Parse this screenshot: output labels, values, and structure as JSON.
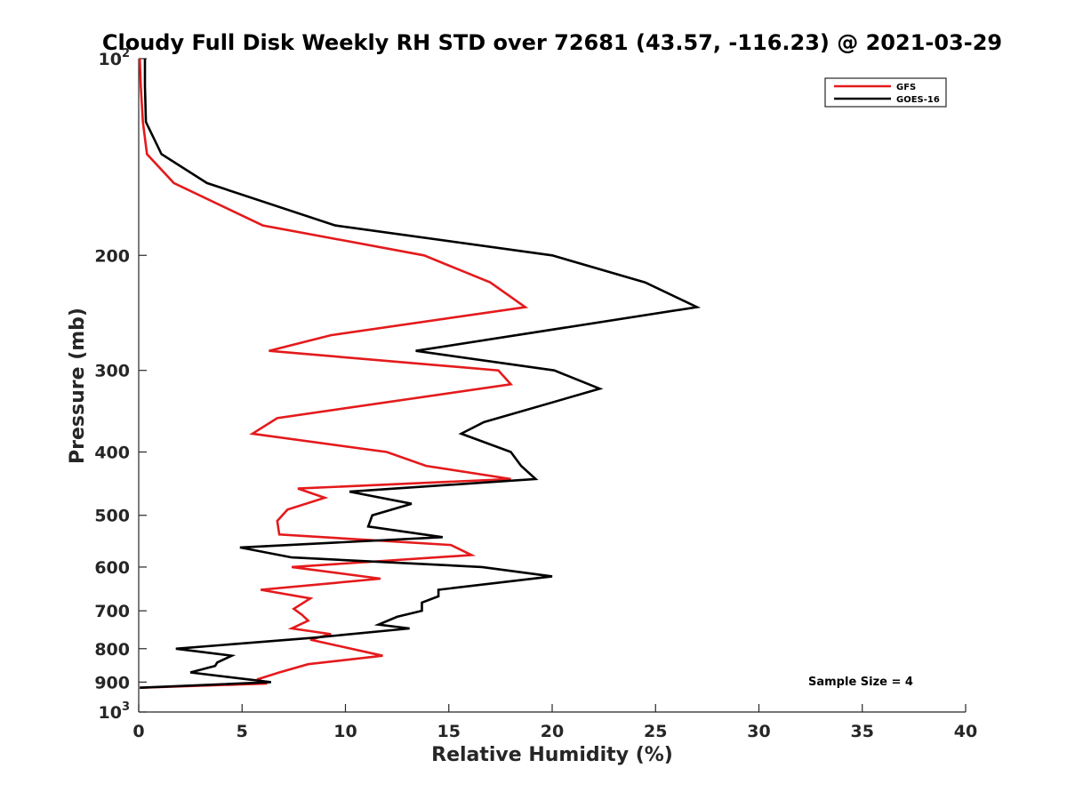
{
  "chart_data": {
    "type": "line",
    "title": "Cloudy Full Disk Weekly RH STD over 72681 (43.57, -116.23) @ 2021-03-29",
    "xlabel": "Relative Humidity (%)",
    "ylabel": "Pressure (mb)",
    "xlim": [
      0,
      40
    ],
    "ylim": [
      100,
      1000
    ],
    "yscale": "log",
    "y_reversed": true,
    "grid": false,
    "legend_position": "top-right",
    "x_ticks": [
      0,
      5,
      10,
      15,
      20,
      25,
      30,
      35,
      40
    ],
    "x_tick_labels": [
      "0",
      "5",
      "10",
      "15",
      "20",
      "25",
      "30",
      "35",
      "40"
    ],
    "y_ticks": [
      100,
      200,
      300,
      400,
      500,
      600,
      700,
      800,
      900,
      1000
    ],
    "y_tick_labels": [
      {
        "base": "10",
        "exp": "2"
      },
      {
        "base": "200",
        "exp": ""
      },
      {
        "base": "300",
        "exp": ""
      },
      {
        "base": "400",
        "exp": ""
      },
      {
        "base": "500",
        "exp": ""
      },
      {
        "base": "600",
        "exp": ""
      },
      {
        "base": "700",
        "exp": ""
      },
      {
        "base": "800",
        "exp": ""
      },
      {
        "base": "900",
        "exp": ""
      },
      {
        "base": "10",
        "exp": "3"
      }
    ],
    "annotation": "Sample Size = 4",
    "series": [
      {
        "name": "GFS",
        "color": "#e41a1c",
        "points": [
          [
            0.05,
            100
          ],
          [
            0.1,
            110
          ],
          [
            0.2,
            125
          ],
          [
            0.4,
            140
          ],
          [
            1.7,
            155
          ],
          [
            6.0,
            180
          ],
          [
            13.8,
            200
          ],
          [
            17.0,
            220
          ],
          [
            18.7,
            240
          ],
          [
            9.3,
            265
          ],
          [
            6.3,
            280
          ],
          [
            17.4,
            300
          ],
          [
            18.0,
            315
          ],
          [
            6.7,
            355
          ],
          [
            5.5,
            375
          ],
          [
            12.0,
            400
          ],
          [
            13.9,
            420
          ],
          [
            18.0,
            440
          ],
          [
            7.7,
            455
          ],
          [
            9.0,
            470
          ],
          [
            7.2,
            490
          ],
          [
            6.7,
            510
          ],
          [
            6.8,
            535
          ],
          [
            15.1,
            555
          ],
          [
            16.1,
            575
          ],
          [
            7.4,
            600
          ],
          [
            11.7,
            625
          ],
          [
            5.9,
            650
          ],
          [
            8.3,
            670
          ],
          [
            7.5,
            695
          ],
          [
            7.9,
            710
          ],
          [
            8.2,
            725
          ],
          [
            7.4,
            745
          ],
          [
            9.3,
            760
          ],
          [
            8.3,
            775
          ],
          [
            11.8,
            820
          ],
          [
            8.2,
            845
          ],
          [
            6.8,
            870
          ],
          [
            5.8,
            890
          ],
          [
            6.1,
            905
          ],
          [
            0.05,
            918
          ]
        ]
      },
      {
        "name": "GOES-16",
        "color": "#000000",
        "points": [
          [
            0.3,
            100
          ],
          [
            0.3,
            110
          ],
          [
            0.35,
            125
          ],
          [
            1.1,
            140
          ],
          [
            3.3,
            155
          ],
          [
            9.5,
            180
          ],
          [
            20.0,
            200
          ],
          [
            24.5,
            220
          ],
          [
            27.0,
            240
          ],
          [
            13.4,
            280
          ],
          [
            20.1,
            300
          ],
          [
            22.3,
            320
          ],
          [
            16.7,
            360
          ],
          [
            15.6,
            375
          ],
          [
            18.0,
            400
          ],
          [
            18.5,
            420
          ],
          [
            19.2,
            440
          ],
          [
            10.2,
            460
          ],
          [
            13.2,
            480
          ],
          [
            11.3,
            500
          ],
          [
            11.1,
            520
          ],
          [
            14.7,
            540
          ],
          [
            4.9,
            560
          ],
          [
            7.4,
            580
          ],
          [
            16.6,
            600
          ],
          [
            20.0,
            620
          ],
          [
            14.5,
            650
          ],
          [
            14.5,
            665
          ],
          [
            13.7,
            680
          ],
          [
            13.7,
            700
          ],
          [
            12.5,
            715
          ],
          [
            11.6,
            735
          ],
          [
            13.1,
            745
          ],
          [
            8.4,
            770
          ],
          [
            1.8,
            800
          ],
          [
            4.5,
            820
          ],
          [
            3.8,
            840
          ],
          [
            3.7,
            850
          ],
          [
            2.5,
            870
          ],
          [
            6.4,
            900
          ],
          [
            0.05,
            918
          ]
        ]
      }
    ]
  }
}
